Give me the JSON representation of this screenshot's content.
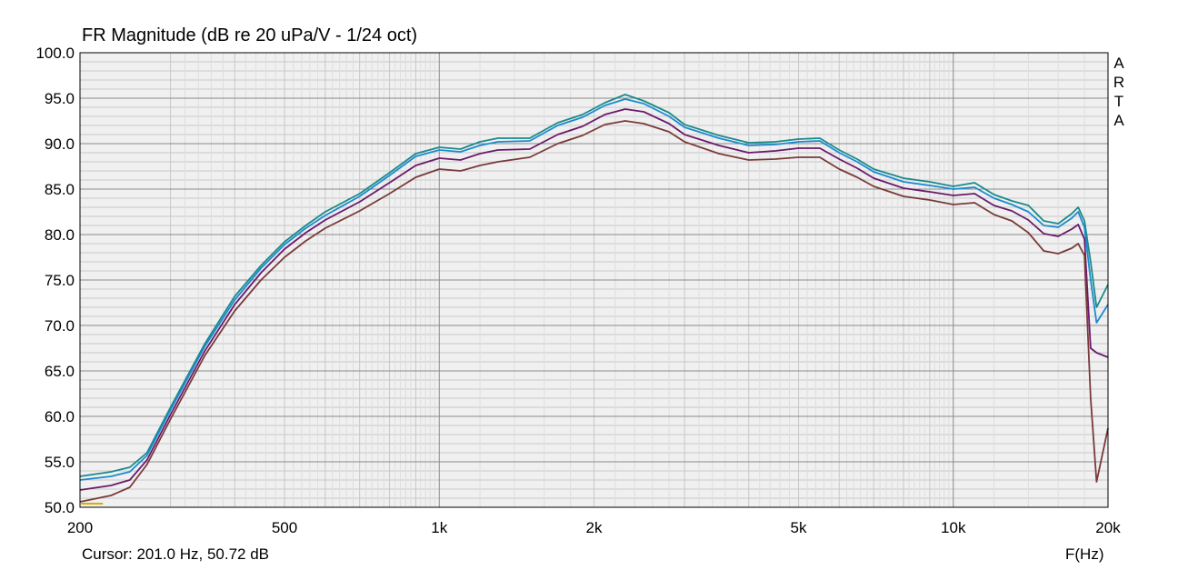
{
  "header": {
    "title": "FR Magnitude (dB re 20 uPa/V - 1/24 oct)",
    "watermark": [
      "A",
      "R",
      "T",
      "A"
    ]
  },
  "footer": {
    "cursor_readout": "Cursor: 201.0 Hz, 50.72 dB",
    "x_unit_label": "F(Hz)"
  },
  "chart_data": {
    "type": "line",
    "title": "FR Magnitude (dB re 20 uPa/V - 1/24 oct)",
    "xlabel": "F(Hz)",
    "ylabel": "",
    "xscale": "log",
    "xlim": [
      200,
      20000
    ],
    "ylim": [
      50,
      100
    ],
    "grid": true,
    "background": "#f0f0f0",
    "x_ticks": [
      {
        "value": 200,
        "label": "200"
      },
      {
        "value": 500,
        "label": "500"
      },
      {
        "value": 1000,
        "label": "1k"
      },
      {
        "value": 2000,
        "label": "2k"
      },
      {
        "value": 5000,
        "label": "5k"
      },
      {
        "value": 10000,
        "label": "10k"
      },
      {
        "value": 20000,
        "label": "20k"
      }
    ],
    "y_ticks": [
      {
        "value": 100,
        "label": "100.0"
      },
      {
        "value": 95,
        "label": "95.0"
      },
      {
        "value": 90,
        "label": "90.0"
      },
      {
        "value": 85,
        "label": "85.0"
      },
      {
        "value": 80,
        "label": "80.0"
      },
      {
        "value": 75,
        "label": "75.0"
      },
      {
        "value": 70,
        "label": "70.0"
      },
      {
        "value": 65,
        "label": "65.0"
      },
      {
        "value": 60,
        "label": "60.0"
      },
      {
        "value": 55,
        "label": "55.0"
      },
      {
        "value": 50,
        "label": "50.0"
      }
    ],
    "series": [
      {
        "color": "#1a8a8a",
        "x": [
          200,
          230,
          250,
          270,
          300,
          350,
          400,
          450,
          500,
          550,
          600,
          700,
          800,
          900,
          1000,
          1100,
          1200,
          1300,
          1500,
          1700,
          1900,
          2100,
          2300,
          2500,
          2800,
          3000,
          3500,
          4000,
          4500,
          5000,
          5500,
          6000,
          6500,
          7000,
          8000,
          9000,
          10000,
          11000,
          12000,
          13000,
          14000,
          15000,
          16000,
          17000,
          17500,
          18000,
          18500,
          19000,
          20000
        ],
        "y": [
          53.4,
          53.9,
          54.4,
          56,
          61,
          68,
          73.2,
          76.6,
          79.2,
          81,
          82.5,
          84.5,
          86.8,
          88.9,
          89.6,
          89.4,
          90.2,
          90.6,
          90.6,
          92.3,
          93.2,
          94.5,
          95.4,
          94.7,
          93.4,
          92.1,
          90.9,
          90.1,
          90.2,
          90.5,
          90.6,
          89.3,
          88.3,
          87.2,
          86.2,
          85.8,
          85.3,
          85.7,
          84.4,
          83.7,
          83.2,
          81.5,
          81.2,
          82.3,
          83,
          81.5,
          77,
          72,
          74.5
        ]
      },
      {
        "color": "#1c8ad0",
        "x": [
          200,
          230,
          250,
          270,
          300,
          350,
          400,
          450,
          500,
          550,
          600,
          700,
          800,
          900,
          1000,
          1100,
          1200,
          1300,
          1500,
          1700,
          1900,
          2100,
          2300,
          2500,
          2800,
          3000,
          3500,
          4000,
          4500,
          5000,
          5500,
          6000,
          6500,
          7000,
          8000,
          9000,
          10000,
          11000,
          12000,
          13000,
          14000,
          15000,
          16000,
          17000,
          17500,
          18000,
          18500,
          19000,
          20000
        ],
        "y": [
          53.0,
          53.4,
          53.9,
          55.7,
          60.7,
          67.7,
          72.8,
          76.3,
          78.9,
          80.7,
          82.1,
          84.2,
          86.5,
          88.6,
          89.3,
          89.1,
          89.8,
          90.2,
          90.3,
          92,
          92.9,
          94.2,
          94.9,
          94.4,
          93,
          91.8,
          90.6,
          89.8,
          89.9,
          90.2,
          90.3,
          89,
          88,
          86.9,
          85.8,
          85.4,
          85,
          85.2,
          84,
          83.3,
          82.5,
          81,
          80.8,
          81.8,
          82.5,
          80.8,
          75,
          70.3,
          72.3
        ]
      },
      {
        "color": "#6a1a6a",
        "x": [
          200,
          230,
          250,
          270,
          300,
          350,
          400,
          450,
          500,
          550,
          600,
          700,
          800,
          900,
          1000,
          1100,
          1200,
          1300,
          1500,
          1700,
          1900,
          2100,
          2300,
          2500,
          2800,
          3000,
          3500,
          4000,
          4500,
          5000,
          5500,
          6000,
          6500,
          7000,
          8000,
          9000,
          10000,
          11000,
          12000,
          13000,
          14000,
          15000,
          16000,
          17000,
          17500,
          18000,
          18500,
          19000,
          20000
        ],
        "y": [
          51.9,
          52.4,
          53,
          55.2,
          60.2,
          67.2,
          72.3,
          75.8,
          78.4,
          80.2,
          81.6,
          83.6,
          85.7,
          87.6,
          88.4,
          88.2,
          88.9,
          89.3,
          89.4,
          91,
          91.9,
          93.2,
          93.8,
          93.5,
          92.2,
          91,
          89.8,
          89,
          89.2,
          89.5,
          89.5,
          88.3,
          87.3,
          86.2,
          85.1,
          84.7,
          84.3,
          84.5,
          83.2,
          82.6,
          81.6,
          80.1,
          79.8,
          80.6,
          81.1,
          79.5,
          67.5,
          67,
          66.5
        ]
      },
      {
        "color": "#7a3a3a",
        "x": [
          200,
          230,
          250,
          270,
          300,
          350,
          400,
          450,
          500,
          550,
          600,
          700,
          800,
          900,
          1000,
          1100,
          1200,
          1300,
          1500,
          1700,
          1900,
          2100,
          2300,
          2500,
          2800,
          3000,
          3500,
          4000,
          4500,
          5000,
          5500,
          6000,
          6500,
          7000,
          8000,
          9000,
          10000,
          11000,
          12000,
          13000,
          14000,
          15000,
          16000,
          17000,
          17500,
          18000,
          18500,
          19000,
          20000
        ],
        "y": [
          50.6,
          51.3,
          52.2,
          54.7,
          59.7,
          66.7,
          71.6,
          75,
          77.5,
          79.3,
          80.7,
          82.6,
          84.5,
          86.3,
          87.2,
          87,
          87.6,
          88,
          88.5,
          90,
          90.9,
          92.1,
          92.5,
          92.2,
          91.3,
          90.2,
          88.9,
          88.2,
          88.3,
          88.5,
          88.5,
          87.2,
          86.3,
          85.3,
          84.2,
          83.8,
          83.3,
          83.5,
          82.2,
          81.5,
          80.2,
          78.2,
          77.9,
          78.5,
          79,
          77.7,
          62,
          52.8,
          58.7
        ]
      }
    ]
  }
}
